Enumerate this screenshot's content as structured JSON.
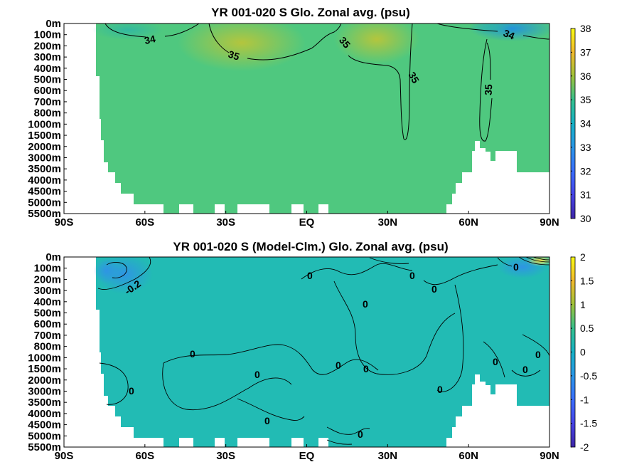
{
  "chart_data": [
    {
      "type": "heatmap",
      "title": "YR 001-020 S Glo. Zonal avg. (psu)",
      "x_ticks": [
        "90S",
        "60S",
        "30S",
        "EQ",
        "30N",
        "60N",
        "90N"
      ],
      "x_values": [
        -90,
        -60,
        -30,
        0,
        30,
        60,
        90
      ],
      "y_ticks": [
        "0m",
        "100m",
        "200m",
        "300m",
        "400m",
        "500m",
        "600m",
        "700m",
        "800m",
        "1000m",
        "1500m",
        "2000m",
        "3000m",
        "3500m",
        "4000m",
        "4500m",
        "5000m",
        "5500m"
      ],
      "colorbar": {
        "min": 30,
        "max": 38,
        "ticks": [
          "30",
          "31",
          "32",
          "33",
          "34",
          "35",
          "36",
          "37",
          "38"
        ]
      },
      "contour_labels": [
        "34",
        "35",
        "35",
        "35",
        "35",
        "34"
      ],
      "colormap": "parula"
    },
    {
      "type": "heatmap",
      "title": "YR 001-020 S (Model-Clm.) Glo. Zonal avg. (psu)",
      "x_ticks": [
        "90S",
        "60S",
        "30S",
        "EQ",
        "30N",
        "60N",
        "90N"
      ],
      "x_values": [
        -90,
        -60,
        -30,
        0,
        30,
        60,
        90
      ],
      "y_ticks": [
        "0m",
        "100m",
        "200m",
        "300m",
        "400m",
        "500m",
        "600m",
        "700m",
        "800m",
        "1000m",
        "1500m",
        "2000m",
        "3000m",
        "3500m",
        "4000m",
        "4500m",
        "5000m",
        "5500m"
      ],
      "colorbar": {
        "min": -2,
        "max": 2,
        "ticks": [
          "-2",
          "-1.5",
          "-1",
          "-0.5",
          "0",
          "0.5",
          "1",
          "1.5",
          "2"
        ]
      },
      "contour_labels": [
        "-0.2",
        "0",
        "0",
        "0",
        "0",
        "0",
        "0",
        "0",
        "0",
        "0",
        "0",
        "0",
        "0",
        "0",
        "0",
        "0",
        "0"
      ],
      "colormap": "parula"
    }
  ]
}
